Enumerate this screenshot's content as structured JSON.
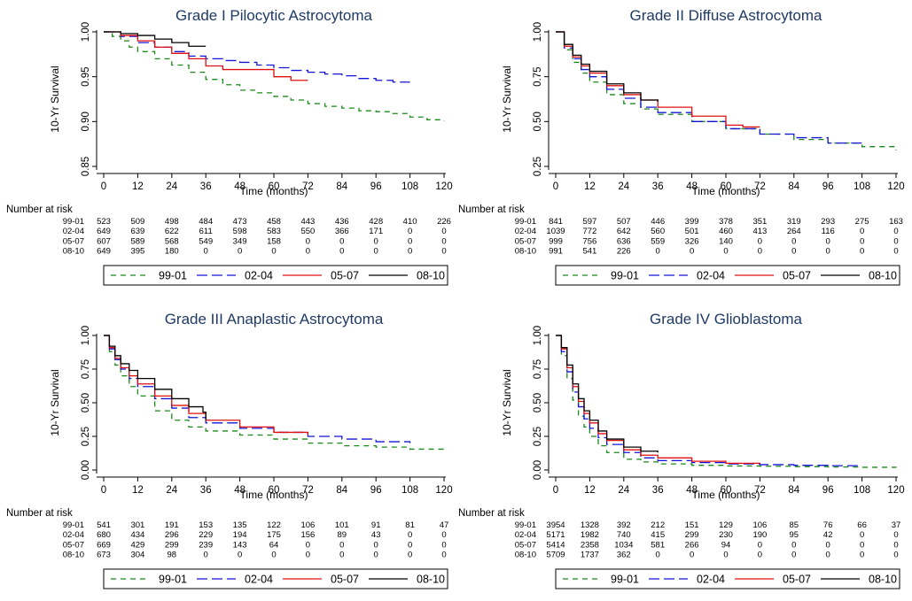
{
  "legend": [
    "99-01",
    "02-04",
    "05-07",
    "08-10"
  ],
  "risk_header": "Number at risk",
  "colors": {
    "99-01": "#1a8a1a",
    "02-04": "#1515d8",
    "05-07": "#e01010",
    "08-10": "#000000",
    "title": "#1f3a63"
  },
  "x_ticks": [
    0,
    12,
    24,
    36,
    48,
    60,
    72,
    84,
    96,
    108,
    120
  ],
  "chart_data": [
    {
      "type": "line",
      "title": "Grade I Pilocytic Astrocytoma",
      "xlabel": "Time (months)",
      "ylabel": "10-Yr Survival",
      "xlim": [
        0,
        120
      ],
      "ylim": [
        0.85,
        1.0
      ],
      "yticks": [
        "0.85",
        "0.90",
        "0.95",
        "1.00"
      ],
      "ytick_values": [
        0.85,
        0.9,
        0.95,
        1.0
      ],
      "series": [
        {
          "name": "99-01",
          "x": [
            0,
            3,
            6,
            9,
            12,
            18,
            24,
            30,
            36,
            42,
            48,
            54,
            60,
            66,
            72,
            78,
            84,
            90,
            96,
            102,
            108,
            114,
            120
          ],
          "y": [
            1.0,
            0.995,
            0.99,
            0.983,
            0.978,
            0.97,
            0.963,
            0.955,
            0.947,
            0.941,
            0.935,
            0.932,
            0.928,
            0.924,
            0.92,
            0.917,
            0.915,
            0.912,
            0.911,
            0.909,
            0.905,
            0.902,
            0.901
          ]
        },
        {
          "name": "02-04",
          "x": [
            0,
            6,
            12,
            18,
            24,
            30,
            36,
            42,
            48,
            54,
            60,
            66,
            72,
            78,
            84,
            90,
            96,
            102,
            108
          ],
          "y": [
            1.0,
            0.995,
            0.988,
            0.983,
            0.978,
            0.973,
            0.97,
            0.968,
            0.966,
            0.963,
            0.96,
            0.957,
            0.955,
            0.953,
            0.951,
            0.948,
            0.946,
            0.944,
            0.944
          ]
        },
        {
          "name": "05-07",
          "x": [
            0,
            6,
            12,
            18,
            24,
            30,
            36,
            42,
            48,
            54,
            60,
            66,
            72
          ],
          "y": [
            1.0,
            0.996,
            0.99,
            0.983,
            0.976,
            0.97,
            0.962,
            0.958,
            0.958,
            0.958,
            0.95,
            0.946,
            0.946
          ]
        },
        {
          "name": "08-10",
          "x": [
            0,
            6,
            12,
            18,
            24,
            30,
            36
          ],
          "y": [
            1.0,
            0.998,
            0.996,
            0.992,
            0.988,
            0.984,
            0.984
          ]
        }
      ],
      "risk_table": [
        {
          "label": "99-01",
          "values": [
            "523",
            "509",
            "498",
            "484",
            "473",
            "458",
            "443",
            "436",
            "428",
            "410",
            "226"
          ]
        },
        {
          "label": "02-04",
          "values": [
            "649",
            "639",
            "622",
            "611",
            "598",
            "583",
            "550",
            "366",
            "171",
            "0",
            "0"
          ]
        },
        {
          "label": "05-07",
          "values": [
            "607",
            "589",
            "568",
            "549",
            "349",
            "158",
            "0",
            "0",
            "0",
            "0",
            "0"
          ]
        },
        {
          "label": "08-10",
          "values": [
            "649",
            "395",
            "180",
            "0",
            "0",
            "0",
            "0",
            "0",
            "0",
            "0",
            "0"
          ]
        }
      ]
    },
    {
      "type": "line",
      "title": "Grade II Diffuse Astrocytoma",
      "xlabel": "Time (months)",
      "ylabel": "10-Yr Survival",
      "xlim": [
        0,
        120
      ],
      "ylim": [
        0.25,
        1.0
      ],
      "yticks": [
        "0.25",
        "0.50",
        "0.75",
        "1.00"
      ],
      "ytick_values": [
        0.25,
        0.5,
        0.75,
        1.0
      ],
      "series": [
        {
          "name": "99-01",
          "x": [
            0,
            3,
            6,
            9,
            12,
            18,
            24,
            30,
            36,
            48,
            60,
            72,
            84,
            96,
            108,
            120
          ],
          "y": [
            1.0,
            0.9,
            0.83,
            0.77,
            0.72,
            0.65,
            0.6,
            0.57,
            0.54,
            0.5,
            0.46,
            0.43,
            0.4,
            0.38,
            0.36,
            0.34
          ]
        },
        {
          "name": "02-04",
          "x": [
            0,
            3,
            6,
            9,
            12,
            18,
            24,
            30,
            36,
            48,
            60,
            72,
            84,
            96,
            108
          ],
          "y": [
            1.0,
            0.91,
            0.85,
            0.79,
            0.75,
            0.68,
            0.63,
            0.58,
            0.55,
            0.5,
            0.46,
            0.43,
            0.41,
            0.38,
            0.37
          ]
        },
        {
          "name": "05-07",
          "x": [
            0,
            3,
            6,
            9,
            12,
            18,
            24,
            30,
            36,
            48,
            60,
            66,
            72
          ],
          "y": [
            1.0,
            0.92,
            0.86,
            0.81,
            0.77,
            0.7,
            0.65,
            0.62,
            0.58,
            0.53,
            0.48,
            0.47,
            0.47
          ]
        },
        {
          "name": "08-10",
          "x": [
            0,
            3,
            6,
            9,
            12,
            18,
            24,
            30,
            36
          ],
          "y": [
            1.0,
            0.93,
            0.87,
            0.82,
            0.78,
            0.71,
            0.66,
            0.62,
            0.61
          ]
        }
      ],
      "risk_table": [
        {
          "label": "99-01",
          "values": [
            "841",
            "597",
            "507",
            "446",
            "399",
            "378",
            "351",
            "319",
            "293",
            "275",
            "163"
          ]
        },
        {
          "label": "02-04",
          "values": [
            "1039",
            "772",
            "642",
            "560",
            "501",
            "460",
            "413",
            "264",
            "116",
            "0",
            "0"
          ]
        },
        {
          "label": "05-07",
          "values": [
            "999",
            "756",
            "636",
            "559",
            "326",
            "140",
            "0",
            "0",
            "0",
            "0",
            "0"
          ]
        },
        {
          "label": "08-10",
          "values": [
            "991",
            "541",
            "226",
            "0",
            "0",
            "0",
            "0",
            "0",
            "0",
            "0",
            "0"
          ]
        }
      ]
    },
    {
      "type": "line",
      "title": "Grade III Anaplastic Astrocytoma",
      "xlabel": "Time (months)",
      "ylabel": "10-Yr Survival",
      "xlim": [
        0,
        120
      ],
      "ylim": [
        0.0,
        1.0
      ],
      "yticks": [
        "0.00",
        "0.25",
        "0.50",
        "0.75",
        "1.00"
      ],
      "ytick_values": [
        0.0,
        0.25,
        0.5,
        0.75,
        1.0
      ],
      "series": [
        {
          "name": "99-01",
          "x": [
            0,
            2,
            4,
            6,
            9,
            12,
            18,
            24,
            30,
            36,
            48,
            60,
            72,
            84,
            96,
            108,
            120
          ],
          "y": [
            1.0,
            0.88,
            0.78,
            0.7,
            0.62,
            0.55,
            0.44,
            0.37,
            0.32,
            0.29,
            0.26,
            0.23,
            0.2,
            0.18,
            0.17,
            0.155,
            0.15
          ]
        },
        {
          "name": "02-04",
          "x": [
            0,
            2,
            4,
            6,
            9,
            12,
            18,
            24,
            30,
            36,
            48,
            60,
            72,
            84,
            96,
            108
          ],
          "y": [
            1.0,
            0.9,
            0.82,
            0.75,
            0.68,
            0.62,
            0.53,
            0.46,
            0.39,
            0.35,
            0.31,
            0.28,
            0.25,
            0.23,
            0.21,
            0.2
          ]
        },
        {
          "name": "05-07",
          "x": [
            0,
            2,
            4,
            6,
            9,
            12,
            18,
            24,
            30,
            36,
            48,
            60,
            72
          ],
          "y": [
            1.0,
            0.91,
            0.83,
            0.76,
            0.7,
            0.64,
            0.55,
            0.48,
            0.42,
            0.37,
            0.32,
            0.28,
            0.26
          ]
        },
        {
          "name": "08-10",
          "x": [
            0,
            2,
            4,
            6,
            9,
            12,
            18,
            24,
            30,
            35,
            36
          ],
          "y": [
            1.0,
            0.92,
            0.85,
            0.79,
            0.74,
            0.68,
            0.6,
            0.53,
            0.47,
            0.43,
            0.37
          ]
        }
      ],
      "risk_table": [
        {
          "label": "99-01",
          "values": [
            "541",
            "301",
            "191",
            "153",
            "135",
            "122",
            "106",
            "101",
            "91",
            "81",
            "47"
          ]
        },
        {
          "label": "02-04",
          "values": [
            "680",
            "434",
            "296",
            "229",
            "194",
            "175",
            "156",
            "89",
            "43",
            "0",
            "0"
          ]
        },
        {
          "label": "05-07",
          "values": [
            "669",
            "429",
            "299",
            "239",
            "143",
            "64",
            "0",
            "0",
            "0",
            "0",
            "0"
          ]
        },
        {
          "label": "08-10",
          "values": [
            "673",
            "304",
            "98",
            "0",
            "0",
            "0",
            "0",
            "0",
            "0",
            "0",
            "0"
          ]
        }
      ]
    },
    {
      "type": "line",
      "title": "Grade IV Glioblastoma",
      "xlabel": "Time (months)",
      "ylabel": "10-Yr Survival",
      "xlim": [
        0,
        120
      ],
      "ylim": [
        0.0,
        1.0
      ],
      "yticks": [
        "0.00",
        "0.25",
        "0.50",
        "0.75",
        "1.00"
      ],
      "ytick_values": [
        0.0,
        0.25,
        0.5,
        0.75,
        1.0
      ],
      "series": [
        {
          "name": "99-01",
          "x": [
            0,
            2,
            4,
            6,
            8,
            10,
            12,
            15,
            18,
            24,
            30,
            36,
            48,
            60,
            72,
            84,
            96,
            108,
            120
          ],
          "y": [
            1.0,
            0.85,
            0.68,
            0.52,
            0.4,
            0.32,
            0.25,
            0.18,
            0.13,
            0.08,
            0.06,
            0.045,
            0.035,
            0.03,
            0.028,
            0.025,
            0.022,
            0.02,
            0.018
          ]
        },
        {
          "name": "02-04",
          "x": [
            0,
            2,
            4,
            6,
            8,
            10,
            12,
            15,
            18,
            24,
            30,
            36,
            48,
            60,
            72,
            84,
            96,
            108
          ],
          "y": [
            1.0,
            0.88,
            0.73,
            0.58,
            0.47,
            0.38,
            0.31,
            0.24,
            0.19,
            0.13,
            0.09,
            0.07,
            0.055,
            0.045,
            0.04,
            0.035,
            0.032,
            0.03
          ]
        },
        {
          "name": "05-07",
          "x": [
            0,
            2,
            4,
            6,
            8,
            10,
            12,
            15,
            18,
            24,
            30,
            36,
            48,
            60,
            72
          ],
          "y": [
            1.0,
            0.9,
            0.76,
            0.62,
            0.51,
            0.42,
            0.35,
            0.27,
            0.22,
            0.15,
            0.11,
            0.09,
            0.065,
            0.05,
            0.045
          ]
        },
        {
          "name": "08-10",
          "x": [
            0,
            2,
            4,
            6,
            8,
            10,
            12,
            15,
            18,
            24,
            30,
            36
          ],
          "y": [
            1.0,
            0.91,
            0.78,
            0.64,
            0.53,
            0.44,
            0.37,
            0.29,
            0.23,
            0.17,
            0.14,
            0.13
          ]
        }
      ],
      "risk_table": [
        {
          "label": "99-01",
          "values": [
            "3954",
            "1328",
            "392",
            "212",
            "151",
            "129",
            "106",
            "85",
            "76",
            "66",
            "37"
          ]
        },
        {
          "label": "02-04",
          "values": [
            "5171",
            "1982",
            "740",
            "415",
            "299",
            "230",
            "190",
            "95",
            "42",
            "0",
            "0"
          ]
        },
        {
          "label": "05-07",
          "values": [
            "5414",
            "2358",
            "1034",
            "581",
            "266",
            "94",
            "0",
            "0",
            "0",
            "0",
            "0"
          ]
        },
        {
          "label": "08-10",
          "values": [
            "5709",
            "1737",
            "362",
            "0",
            "0",
            "0",
            "0",
            "0",
            "0",
            "0",
            "0"
          ]
        }
      ]
    }
  ]
}
